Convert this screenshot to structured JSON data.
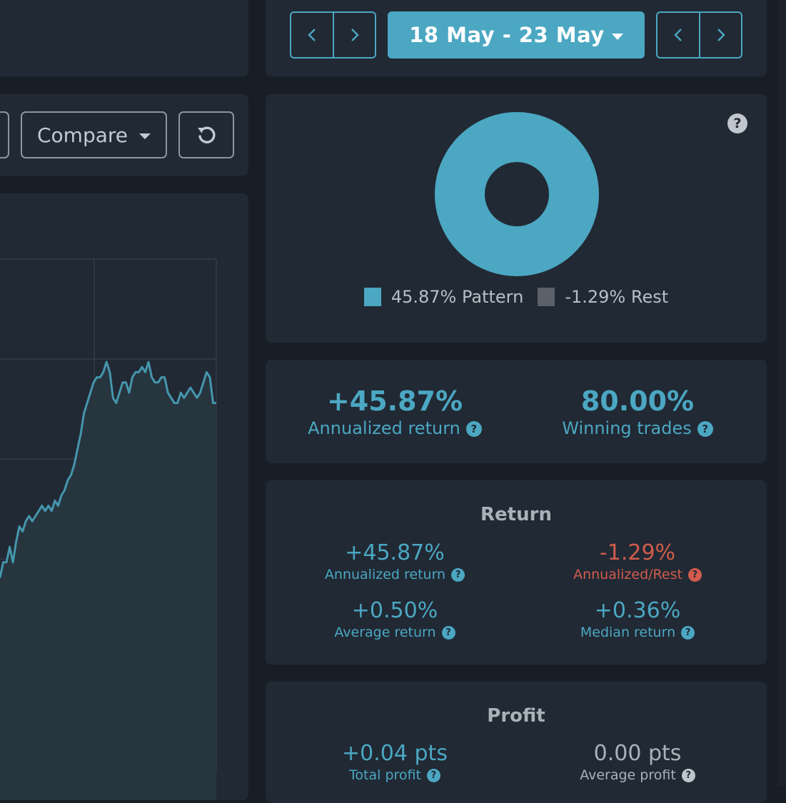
{
  "date_nav": {
    "range_label": "18 May - 23 May",
    "prev_icon": "chevron-left-icon",
    "next_icon": "chevron-right-icon"
  },
  "toolbar": {
    "compare_label": "Compare",
    "reset_icon": "undo-icon"
  },
  "donut": {
    "help_icon": "question-circle-icon",
    "legend": [
      {
        "label": "45.87% Pattern",
        "color": "#4ba7c2"
      },
      {
        "label": "-1.29% Rest",
        "color": "#5a6169"
      }
    ]
  },
  "summary": {
    "annualized_value": "+45.87%",
    "annualized_label": "Annualized return",
    "winning_value": "80.00%",
    "winning_label": "Winning trades"
  },
  "return_section": {
    "title": "Return",
    "items": [
      {
        "value": "+45.87%",
        "label": "Annualized return"
      },
      {
        "value": "-1.29%",
        "label": "Annualized/Rest"
      },
      {
        "value": "+0.50%",
        "label": "Average return"
      },
      {
        "value": "+0.36%",
        "label": "Median return"
      }
    ]
  },
  "profit_section": {
    "title": "Profit",
    "items": [
      {
        "value": "+0.04 pts",
        "label": "Total profit"
      },
      {
        "value": "0.00 pts",
        "label": "Average profit"
      }
    ]
  },
  "chart_data": {
    "type": "area",
    "series": [
      {
        "values": [
          38,
          41,
          41,
          44,
          41,
          45,
          48,
          47,
          49,
          50,
          49,
          50,
          51,
          52,
          51,
          52,
          51,
          53,
          52,
          54,
          55,
          57,
          58,
          60,
          63,
          66,
          70,
          72,
          74,
          76,
          77,
          77,
          78,
          80,
          78,
          73,
          72,
          74,
          76,
          76,
          74,
          77,
          78,
          78,
          79,
          78,
          80,
          77,
          76,
          76,
          77,
          77,
          74,
          73,
          72,
          72,
          74,
          73,
          74,
          75,
          74,
          73,
          74,
          76,
          78,
          77,
          72,
          72
        ]
      }
    ],
    "ylim": [
      0,
      100
    ],
    "grid": true
  }
}
